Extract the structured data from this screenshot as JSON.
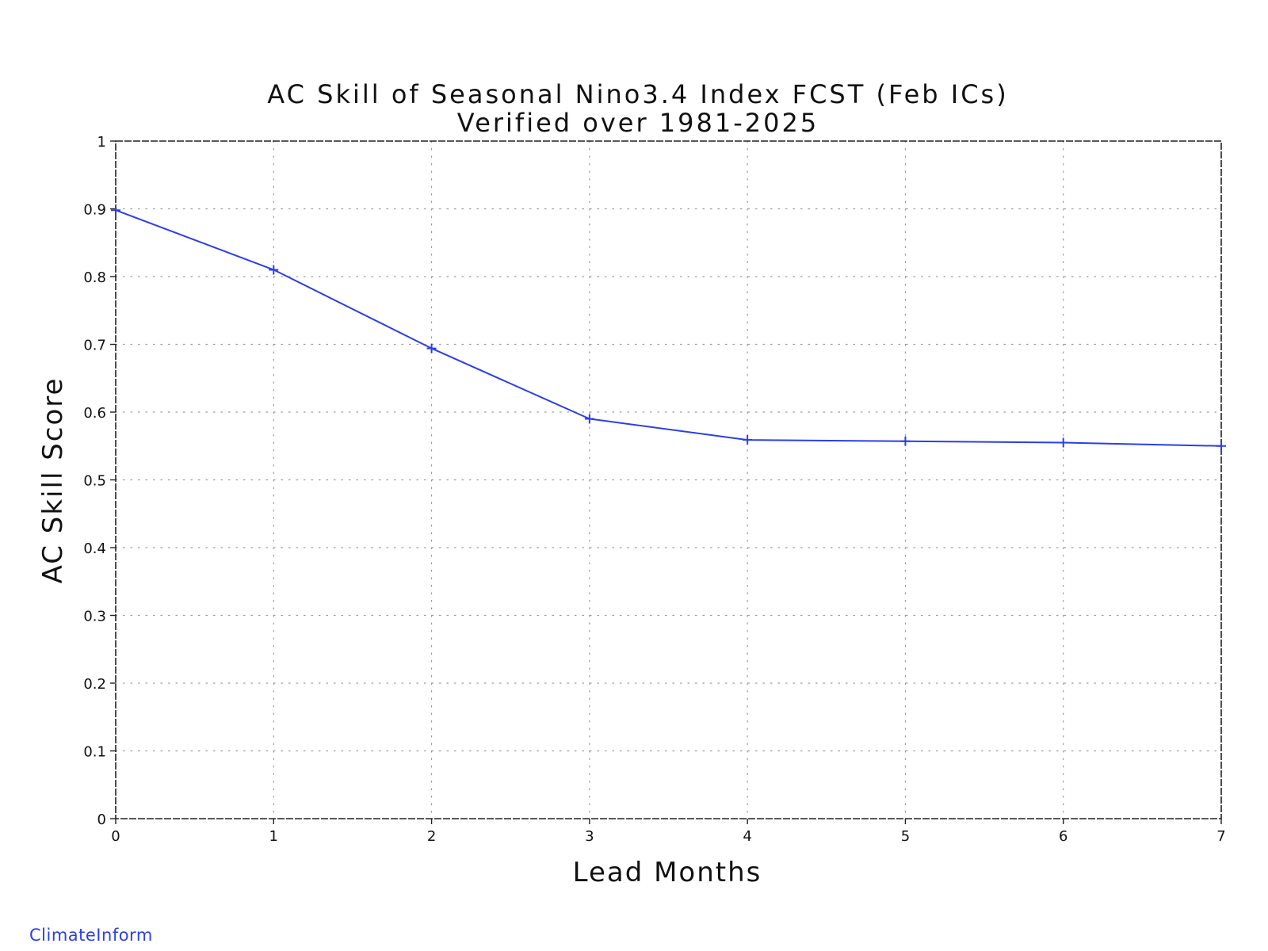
{
  "chart_data": {
    "type": "line",
    "title": "AC Skill of Seasonal Nino3.4 Index FCST (Feb ICs)",
    "subtitle": "Verified over 1981-2025",
    "xlabel": "Lead Months",
    "ylabel": "AC Skill Score",
    "xlim": [
      0,
      7
    ],
    "ylim": [
      0,
      1
    ],
    "x_ticks": [
      "0",
      "1",
      "2",
      "3",
      "4",
      "5",
      "6",
      "7"
    ],
    "y_ticks": [
      "0",
      "0.1",
      "0.2",
      "0.3",
      "0.4",
      "0.5",
      "0.6",
      "0.7",
      "0.8",
      "0.9",
      "1"
    ],
    "grid": true,
    "series": [
      {
        "x": [
          0,
          1,
          2,
          3,
          4,
          5,
          6,
          7
        ],
        "values": [
          0.898,
          0.81,
          0.694,
          0.59,
          0.559,
          0.557,
          0.555,
          0.55
        ],
        "color": "#2c3ee8",
        "marker": "plus"
      }
    ]
  },
  "credit": "ClimateInform"
}
